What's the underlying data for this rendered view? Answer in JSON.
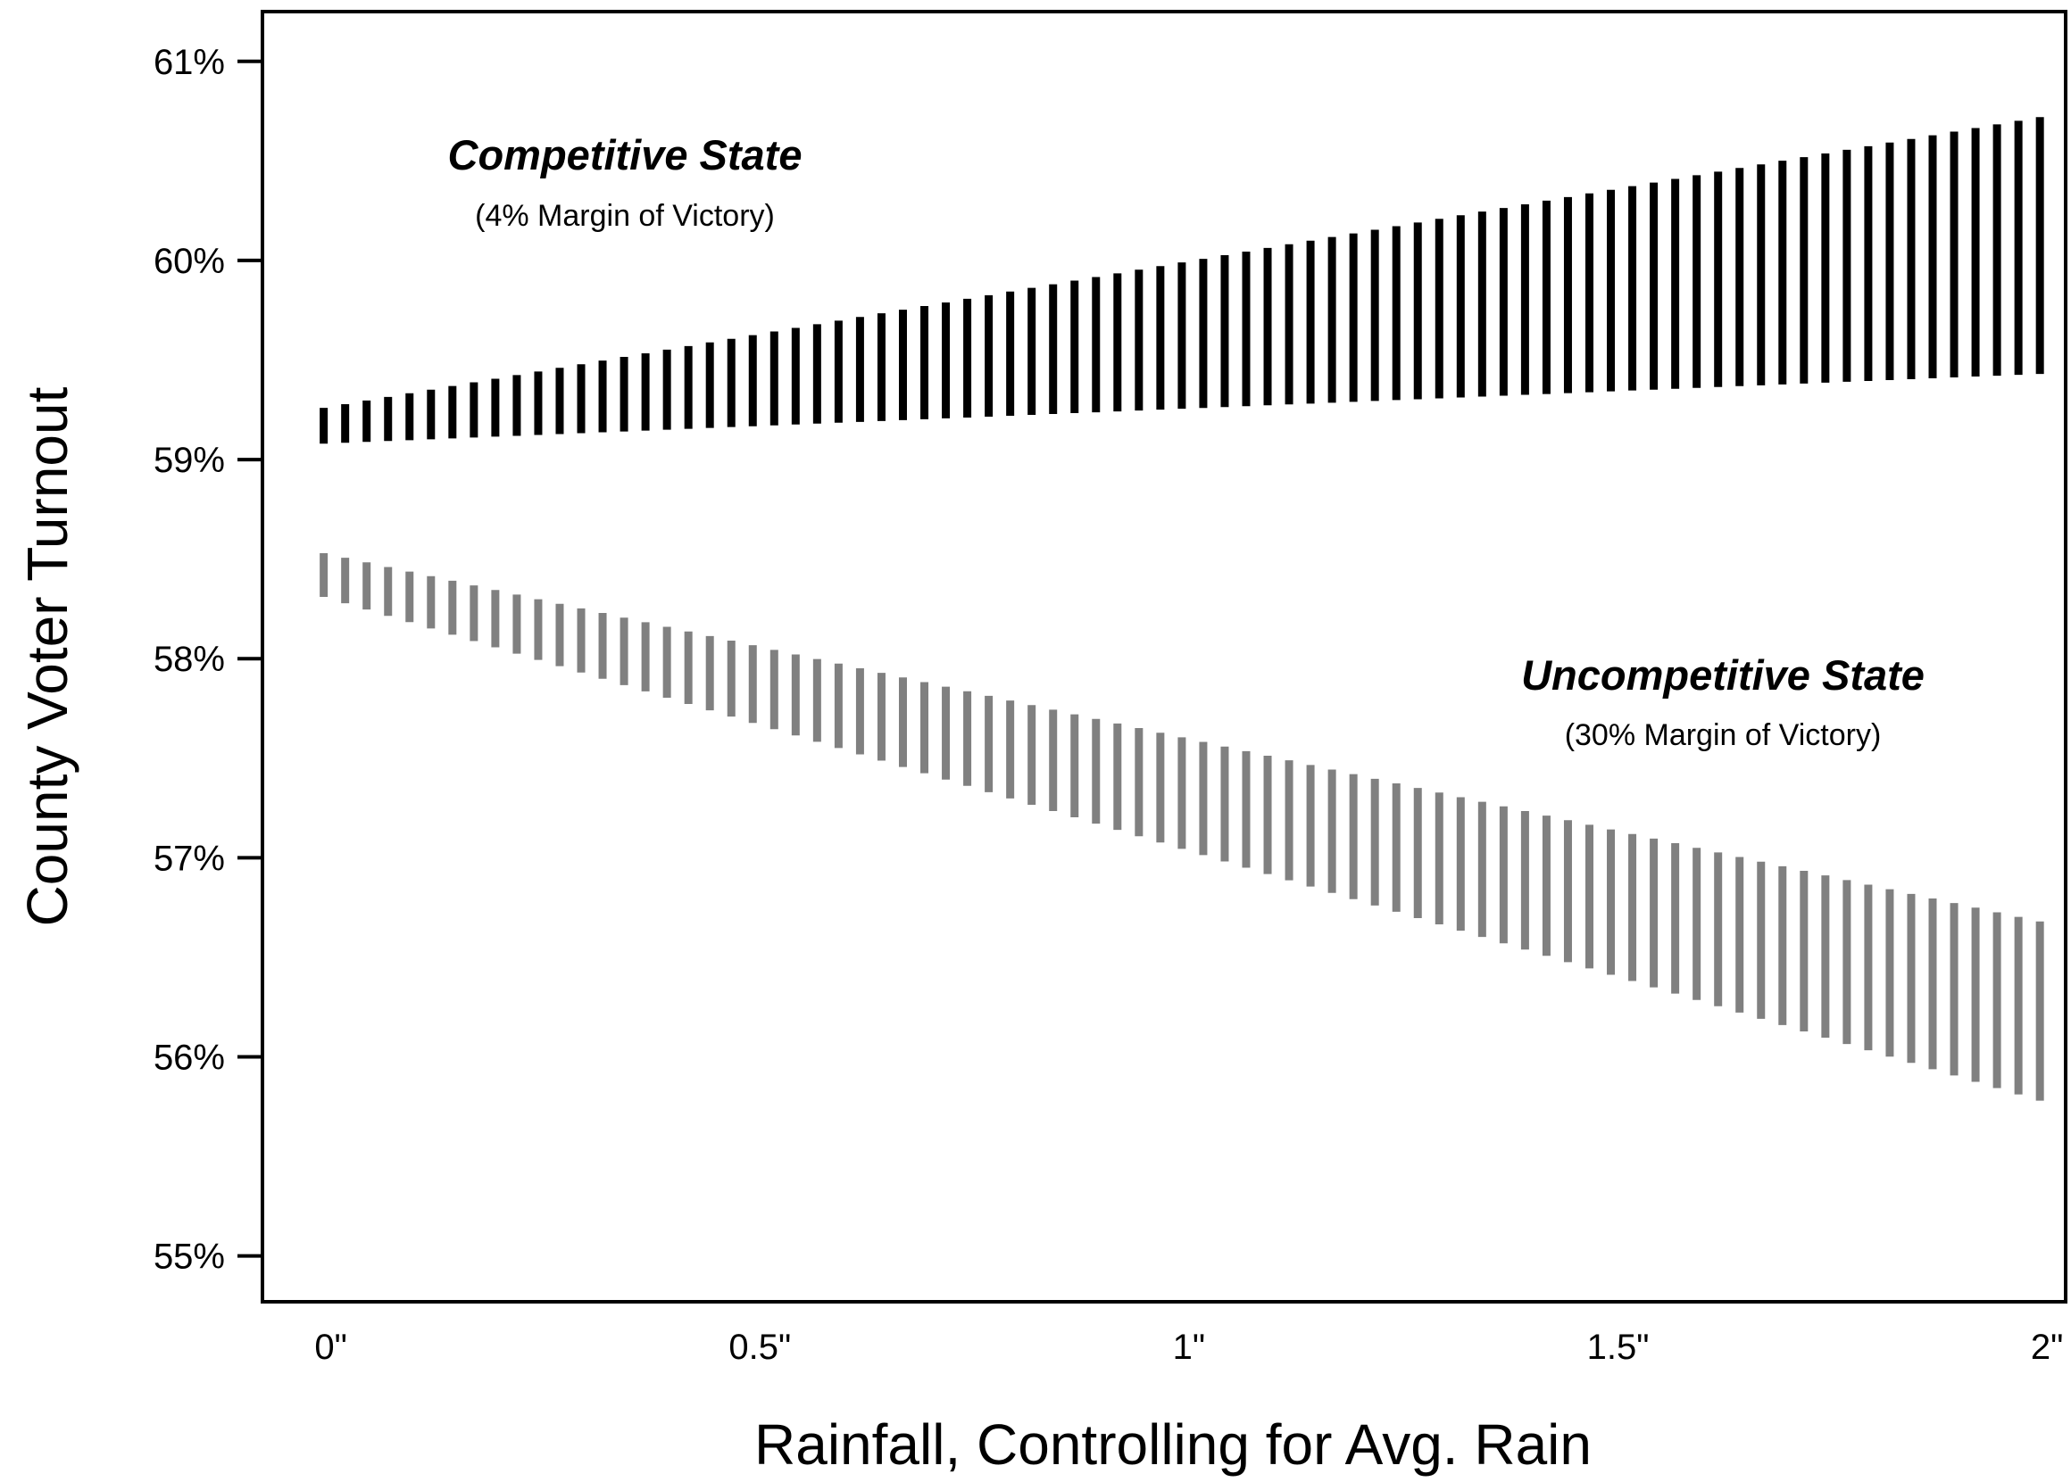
{
  "chart_data": {
    "type": "line",
    "title": "",
    "xlabel": "Rainfall, Controlling for Avg. Rain",
    "ylabel": "County Voter Turnout",
    "xlim": [
      -0.0714,
      2.03
    ],
    "ylim": [
      54.77,
      61.25
    ],
    "x_ticks": [
      {
        "value": 0,
        "label": "0\""
      },
      {
        "value": 0.5,
        "label": "0.5\""
      },
      {
        "value": 1,
        "label": "1\""
      },
      {
        "value": 1.5,
        "label": "1.5\""
      },
      {
        "value": 2,
        "label": "2\""
      }
    ],
    "y_ticks": [
      {
        "value": 55,
        "label": "55%"
      },
      {
        "value": 56,
        "label": "56%"
      },
      {
        "value": 57,
        "label": "57%"
      },
      {
        "value": 58,
        "label": "58%"
      },
      {
        "value": 59,
        "label": "59%"
      },
      {
        "value": 60,
        "label": "60%"
      },
      {
        "value": 61,
        "label": "61%"
      }
    ],
    "grid": false,
    "interval_marks": {
      "count": 81,
      "x_start": 0,
      "x_end": 2
    },
    "series": [
      {
        "color": "#000000",
        "x": [
          0,
          2
        ],
        "lower": [
          59.08,
          59.43
        ],
        "upper": [
          59.26,
          60.72
        ]
      },
      {
        "color": "#808080",
        "x": [
          0,
          2
        ],
        "lower": [
          58.31,
          55.78
        ],
        "upper": [
          58.53,
          56.68
        ]
      }
    ],
    "annotations": [
      {
        "title": "Competitive State",
        "subtitle": "(4% Margin of Victory)"
      },
      {
        "title": "Uncompetitive State",
        "subtitle": "(30% Margin of Victory)"
      }
    ]
  }
}
